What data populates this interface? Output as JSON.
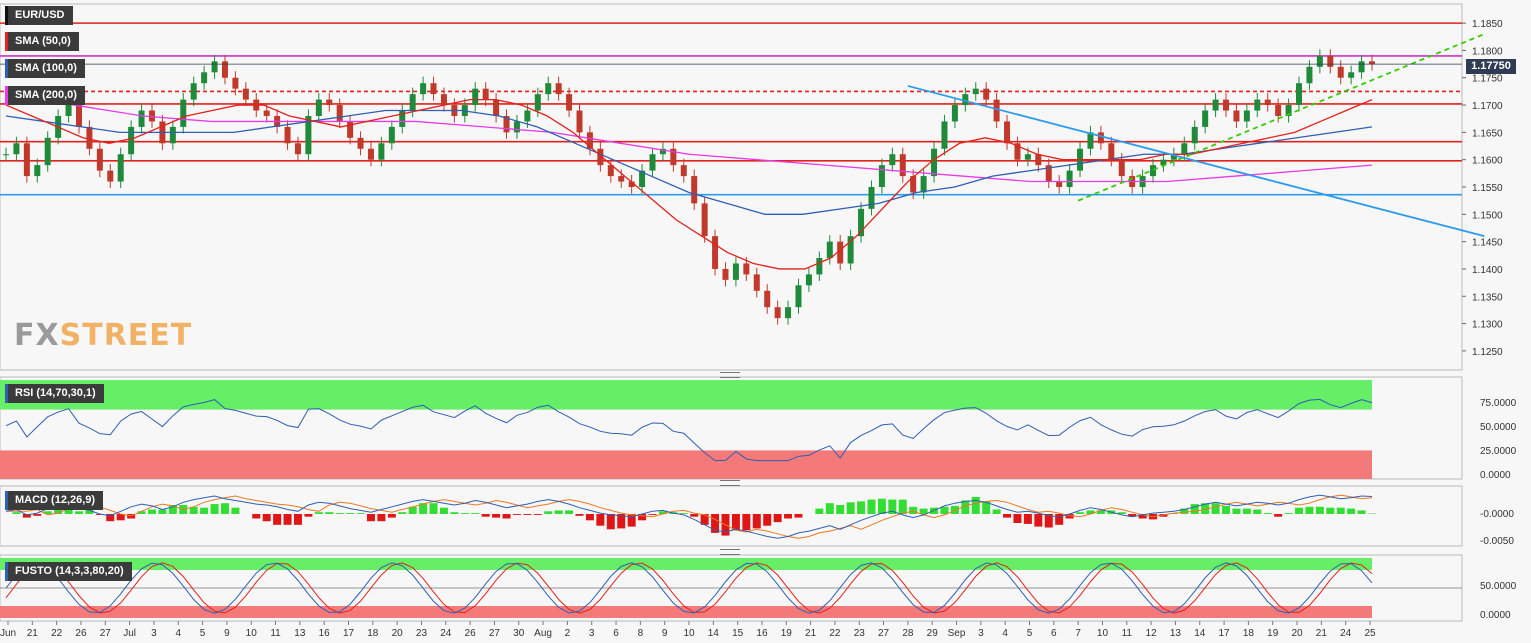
{
  "header": {
    "symbol": "EUR/USD",
    "indicators": [
      "SMA (50,0)",
      "SMA (100,0)",
      "SMA (200,0)"
    ],
    "last_price": "1.17750"
  },
  "watermark": {
    "fx": "FX",
    "street": "STREET"
  },
  "panels": {
    "rsi": {
      "label": "RSI (14,70,30,1)",
      "ticks": [
        "75.0000",
        "50.0000",
        "25.0000",
        "0.0000"
      ]
    },
    "macd": {
      "label": "MACD (12,26,9)",
      "ticks": [
        "-0.0000",
        "-0.0050"
      ]
    },
    "fusto": {
      "label": "FUSTO (14,3,3,80,20)",
      "ticks": [
        "50.0000",
        "0.0000"
      ]
    }
  },
  "colors": {
    "sma50": "#e3211d",
    "sma100": "#2f5fb3",
    "sma200": "#e83ae8",
    "resistance": "#e3211d",
    "support_blue": "#2b9bea",
    "trend_green": "#33cc00",
    "candle_up": "#1f8a3a",
    "candle_down": "#c0392b",
    "overbought": "#66ee66",
    "oversold": "#f47a7a"
  },
  "chart_data": {
    "type": "candlestick",
    "title": "EUR/USD",
    "x_ticks": [
      "Jun",
      "21",
      "22",
      "26",
      "27",
      "Jul",
      "3",
      "4",
      "5",
      "9",
      "10",
      "11",
      "13",
      "16",
      "17",
      "18",
      "20",
      "23",
      "24",
      "26",
      "27",
      "30",
      "Aug",
      "2",
      "3",
      "6",
      "8",
      "9",
      "10",
      "14",
      "15",
      "16",
      "19",
      "21",
      "22",
      "23",
      "27",
      "28",
      "29",
      "Sep",
      "3",
      "4",
      "5",
      "6",
      "7",
      "10",
      "11",
      "12",
      "13",
      "14",
      "17",
      "18",
      "19",
      "20",
      "21",
      "24",
      "25"
    ],
    "y_ticks": [
      1.185,
      1.18,
      1.175,
      1.17,
      1.165,
      1.16,
      1.155,
      1.15,
      1.145,
      1.14,
      1.135,
      1.13,
      1.125
    ],
    "ylim": [
      1.1215,
      1.1885
    ],
    "last_price": 1.1775,
    "horizontal_levels": [
      {
        "value": 1.185,
        "style": "solid",
        "color": "#e3211d"
      },
      {
        "value": 1.179,
        "style": "solid",
        "color": "#cc33cc"
      },
      {
        "value": 1.1725,
        "style": "dashed",
        "color": "#e3211d"
      },
      {
        "value": 1.1702,
        "style": "solid",
        "color": "#e3211d"
      },
      {
        "value": 1.1633,
        "style": "solid",
        "color": "#e3211d"
      },
      {
        "value": 1.1598,
        "style": "solid",
        "color": "#e3211d"
      },
      {
        "value": 1.1536,
        "style": "solid",
        "color": "#2b9bea"
      }
    ],
    "close_series": [
      1.161,
      1.163,
      1.157,
      1.159,
      1.164,
      1.168,
      1.171,
      1.166,
      1.162,
      1.158,
      1.156,
      1.161,
      1.166,
      1.169,
      1.167,
      1.163,
      1.166,
      1.171,
      1.174,
      1.176,
      1.178,
      1.175,
      1.173,
      1.171,
      1.169,
      1.168,
      1.166,
      1.163,
      1.161,
      1.168,
      1.171,
      1.17,
      1.167,
      1.164,
      1.162,
      1.16,
      1.163,
      1.166,
      1.169,
      1.172,
      1.174,
      1.172,
      1.17,
      1.168,
      1.17,
      1.173,
      1.171,
      1.168,
      1.165,
      1.167,
      1.169,
      1.172,
      1.174,
      1.172,
      1.169,
      1.165,
      1.162,
      1.159,
      1.157,
      1.156,
      1.155,
      1.158,
      1.161,
      1.162,
      1.159,
      1.157,
      1.152,
      1.146,
      1.14,
      1.138,
      1.141,
      1.139,
      1.136,
      1.133,
      1.131,
      1.133,
      1.137,
      1.139,
      1.142,
      1.145,
      1.141,
      1.146,
      1.151,
      1.155,
      1.159,
      1.161,
      1.157,
      1.154,
      1.157,
      1.162,
      1.167,
      1.17,
      1.172,
      1.173,
      1.171,
      1.167,
      1.163,
      1.16,
      1.161,
      1.159,
      1.156,
      1.155,
      1.158,
      1.162,
      1.165,
      1.163,
      1.16,
      1.157,
      1.155,
      1.157,
      1.159,
      1.16,
      1.161,
      1.163,
      1.166,
      1.169,
      1.171,
      1.169,
      1.167,
      1.169,
      1.171,
      1.17,
      1.168,
      1.17,
      1.174,
      1.177,
      1.179,
      1.177,
      1.175,
      1.176,
      1.178,
      1.1775
    ],
    "sma50": [
      1.17,
      1.168,
      1.166,
      1.164,
      1.163,
      1.164,
      1.166,
      1.168,
      1.169,
      1.17,
      1.17,
      1.168,
      1.167,
      1.166,
      1.167,
      1.168,
      1.169,
      1.17,
      1.171,
      1.171,
      1.17,
      1.168,
      1.165,
      1.161,
      1.157,
      1.153,
      1.149,
      1.146,
      1.143,
      1.141,
      1.14,
      1.14,
      1.142,
      1.146,
      1.151,
      1.156,
      1.16,
      1.163,
      1.164,
      1.163,
      1.161,
      1.16,
      1.16,
      1.16,
      1.16,
      1.161,
      1.161,
      1.162,
      1.163,
      1.164,
      1.165,
      1.167,
      1.169,
      1.171
    ],
    "sma100": [
      1.168,
      1.167,
      1.166,
      1.165,
      1.165,
      1.165,
      1.165,
      1.166,
      1.167,
      1.168,
      1.169,
      1.169,
      1.169,
      1.168,
      1.166,
      1.163,
      1.16,
      1.157,
      1.154,
      1.152,
      1.15,
      1.15,
      1.151,
      1.152,
      1.154,
      1.155,
      1.157,
      1.158,
      1.159,
      1.16,
      1.161,
      1.161,
      1.162,
      1.163,
      1.164,
      1.165,
      1.166
    ],
    "sma200": [
      1.172,
      1.17,
      1.168,
      1.167,
      1.167,
      1.167,
      1.167,
      1.166,
      1.165,
      1.163,
      1.161,
      1.16,
      1.159,
      1.158,
      1.157,
      1.156,
      1.156,
      1.156,
      1.157,
      1.158,
      1.159
    ],
    "trendlines": [
      {
        "name": "descending",
        "from": [
          37,
          1.1735
        ],
        "to": [
          57,
          1.146
        ],
        "color": "#2b9bea"
      },
      {
        "name": "ascending",
        "from": [
          44,
          1.1525
        ],
        "to": [
          57,
          1.183
        ],
        "color": "#33cc00",
        "style": "dashed"
      }
    ]
  }
}
